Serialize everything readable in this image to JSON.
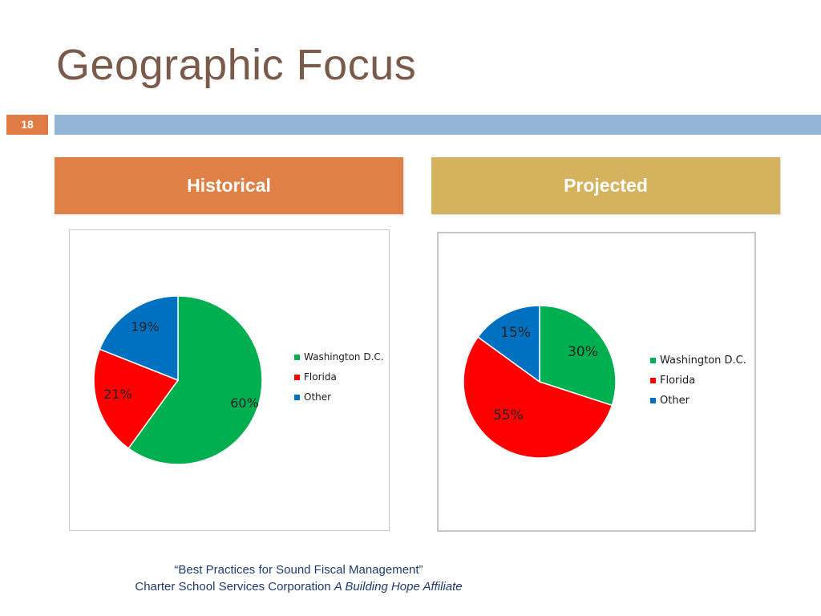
{
  "slide": {
    "title": "Geographic Focus",
    "page_number": "18",
    "footer_line1": "“Best Practices for Sound Fiscal Management”",
    "footer_line2_regular": "Charter School Services Corporation ",
    "footer_line2_italic": "A Building Hope Affiliate"
  },
  "headers": {
    "left": "Historical",
    "right": "Projected"
  },
  "colors": {
    "title": "#7a5a4a",
    "accent_orange": "#df8047",
    "accent_gold": "#d5b25d",
    "bar_blue": "#93b5d6",
    "washington": "#00b050",
    "florida": "#ff0000",
    "other": "#0070c0"
  },
  "chart_data": [
    {
      "type": "pie",
      "title": "",
      "categories": [
        "Washington D.C.",
        "Florida",
        "Other"
      ],
      "values": [
        60,
        21,
        19
      ],
      "labels": [
        "60%",
        "21%",
        "19%"
      ],
      "colors": [
        "#00b050",
        "#ff0000",
        "#0070c0"
      ],
      "legend_position": "right",
      "legend": [
        "Washington D.C.",
        "Florida",
        "Other"
      ]
    },
    {
      "type": "pie",
      "title": "",
      "categories": [
        "Washington D.C.",
        "Florida",
        "Other"
      ],
      "values": [
        30,
        55,
        15
      ],
      "labels": [
        "30%",
        "55%",
        "15%"
      ],
      "colors": [
        "#00b050",
        "#ff0000",
        "#0070c0"
      ],
      "legend_position": "right",
      "legend": [
        "Washington D.C.",
        "Florida",
        "Other"
      ]
    }
  ]
}
